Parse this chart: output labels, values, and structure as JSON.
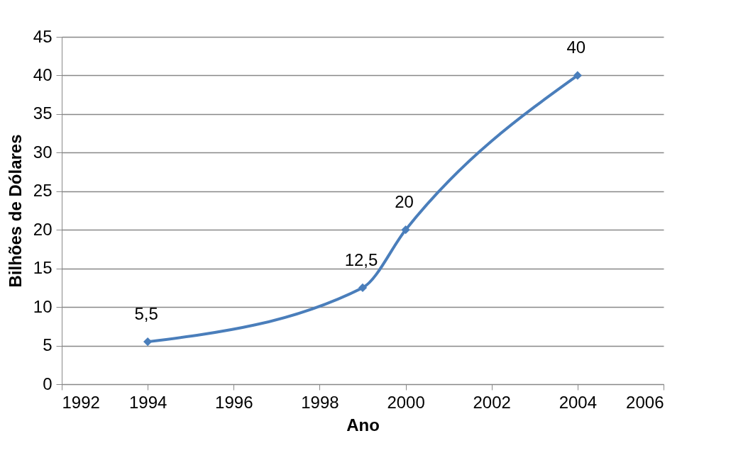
{
  "chart_data": {
    "type": "line",
    "xlabel": "Ano",
    "ylabel": "Bilhões de Dólares",
    "x": [
      1994,
      1999,
      2000,
      2004
    ],
    "series": [
      {
        "color": "#4a7ebb",
        "values": [
          5.5,
          12.5,
          20,
          40
        ],
        "value_labels": [
          "5,5",
          "12,5",
          "20",
          "40"
        ]
      }
    ],
    "xlim": [
      1992,
      2006
    ],
    "xticks": [
      1992,
      1994,
      1996,
      1998,
      2000,
      2002,
      2004,
      2006
    ],
    "ylim": [
      0,
      45
    ],
    "yticks": [
      0,
      5,
      10,
      15,
      20,
      25,
      30,
      35,
      40,
      45
    ],
    "grid": "y",
    "marker": "diamond"
  }
}
